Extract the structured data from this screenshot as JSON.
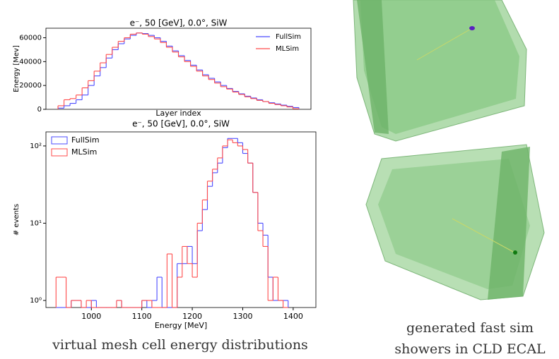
{
  "chart_data": [
    {
      "type": "histogram",
      "title": "e⁻, 50 [GeV], 0.0°, SiW",
      "xlabel": "Layer index",
      "ylabel": "Energy [Mev]",
      "bins": [
        0,
        1,
        2,
        3,
        4,
        5,
        6,
        7,
        8,
        9,
        10,
        11,
        12,
        13,
        14,
        15,
        16,
        17,
        18,
        19,
        20,
        21,
        22,
        23,
        24,
        25,
        26,
        27,
        28,
        29,
        30,
        31,
        32,
        33,
        34,
        35,
        36,
        37,
        38,
        39,
        40
      ],
      "series": [
        {
          "name": "FullSim",
          "color": "#4b4bff",
          "values": [
            1000,
            3000,
            5000,
            8000,
            12000,
            20000,
            28000,
            35000,
            43000,
            50000,
            55000,
            59000,
            62000,
            64000,
            63500,
            62000,
            60000,
            57000,
            53000,
            49000,
            45000,
            41000,
            37000,
            33000,
            29000,
            26000,
            23000,
            20000,
            17500,
            15000,
            13000,
            11000,
            9500,
            8000,
            6500,
            5500,
            4500,
            3500,
            2500,
            1500
          ]
        },
        {
          "name": "MLSim",
          "color": "#ff4b4b",
          "values": [
            3000,
            8000,
            9000,
            12000,
            18000,
            24000,
            32000,
            39000,
            46000,
            52000,
            57000,
            60000,
            63000,
            64000,
            63000,
            61000,
            59000,
            56000,
            52000,
            48000,
            44000,
            40000,
            36000,
            32000,
            28000,
            25000,
            22000,
            19000,
            17000,
            14500,
            12500,
            10500,
            9000,
            7500,
            6500,
            5000,
            4000,
            3000,
            2000,
            500
          ]
        }
      ],
      "xlim": [
        -2,
        42
      ],
      "ylim": [
        0,
        68000
      ],
      "yticks": [
        0,
        20000,
        40000,
        60000
      ],
      "legend": "upper right"
    },
    {
      "type": "histogram",
      "title": "e⁻, 50 [GeV], 0.0°, SiW",
      "xlabel": "Energy [MeV]",
      "ylabel": "# events",
      "bins": [
        930,
        940,
        950,
        960,
        970,
        980,
        990,
        1000,
        1010,
        1020,
        1030,
        1040,
        1050,
        1060,
        1070,
        1080,
        1090,
        1100,
        1110,
        1120,
        1130,
        1140,
        1150,
        1160,
        1170,
        1180,
        1190,
        1200,
        1210,
        1220,
        1230,
        1240,
        1250,
        1260,
        1270,
        1280,
        1290,
        1300,
        1310,
        1320,
        1330,
        1340,
        1350,
        1360,
        1370,
        1380,
        1390
      ],
      "series": [
        {
          "name": "FullSim",
          "color": "#4b4bff",
          "values": [
            0,
            0,
            0,
            1,
            1,
            0,
            0,
            1,
            0,
            0,
            0,
            0,
            1,
            0,
            0,
            0,
            0,
            1,
            0,
            1,
            2,
            0,
            0,
            0,
            3,
            3,
            5,
            3,
            8,
            15,
            30,
            45,
            60,
            95,
            125,
            125,
            110,
            80,
            60,
            25,
            10,
            7,
            2,
            1,
            1,
            1
          ]
        },
        {
          "name": "MLSim",
          "color": "#ff4b4b",
          "values": [
            2,
            2,
            0,
            1,
            1,
            0,
            1,
            0,
            0,
            0,
            0,
            0,
            1,
            0,
            0,
            0,
            0,
            1,
            1,
            0,
            0,
            0,
            4,
            0,
            2,
            5,
            3,
            2,
            10,
            20,
            35,
            50,
            70,
            100,
            120,
            110,
            100,
            90,
            60,
            25,
            8,
            5,
            1,
            2,
            1,
            0
          ]
        }
      ],
      "xlim": [
        910,
        1445
      ],
      "ylim": [
        0.81,
        152
      ],
      "log_y": true,
      "xticks": [
        1000,
        1100,
        1200,
        1300,
        1400
      ],
      "yticks": [
        {
          "value": 1,
          "label": "10⁰"
        },
        {
          "value": 10,
          "label": "10¹"
        },
        {
          "value": 100,
          "label": "10²"
        }
      ],
      "legend": "upper left"
    }
  ],
  "captions": {
    "left": "virtual mesh cell energy distributions",
    "right": [
      "generated fast sim",
      "showers in CLD ECAL"
    ]
  }
}
